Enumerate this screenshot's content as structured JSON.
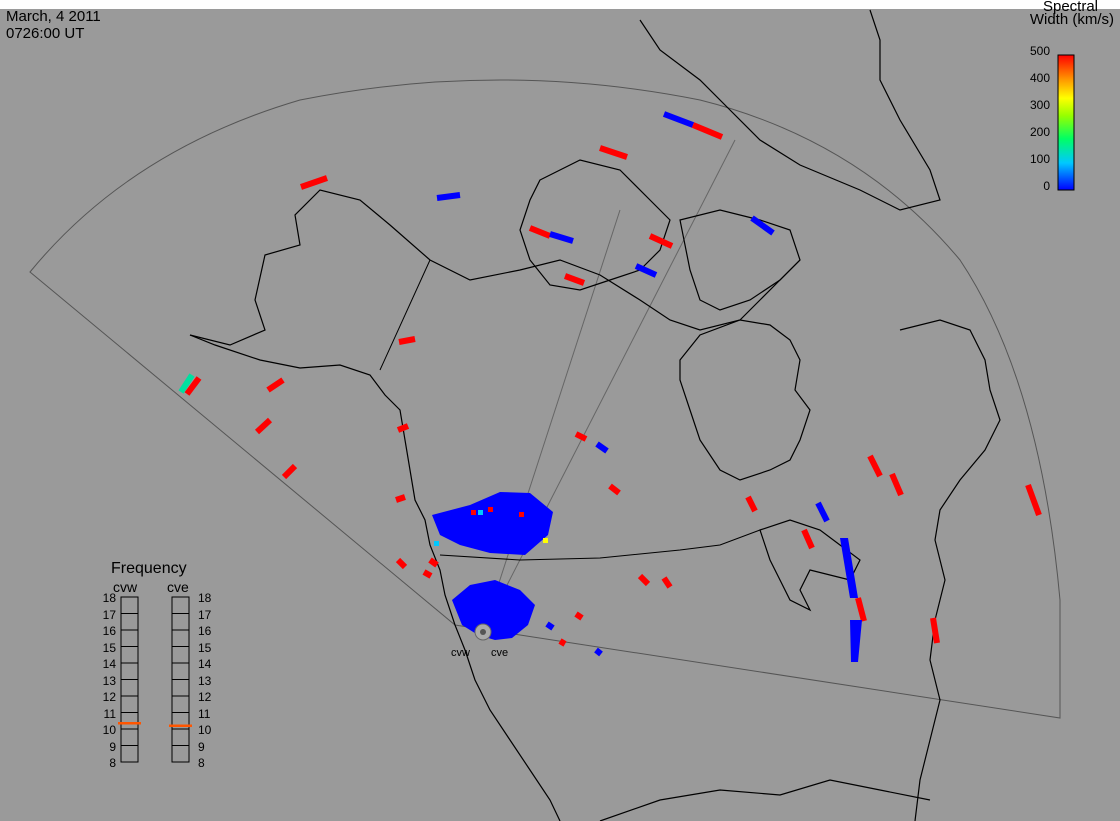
{
  "header": {
    "date": "March, 4 2011",
    "time": "0726:00 UT"
  },
  "colorbar": {
    "title_line1": "Spectral",
    "title_line2": "Width (km/s)",
    "ticks": [
      "500",
      "400",
      "300",
      "200",
      "100",
      "0"
    ],
    "min": 0,
    "max": 500,
    "colors": [
      "#0000ff",
      "#00c8ff",
      "#00ff64",
      "#96ff00",
      "#ffff00",
      "#ff9600",
      "#ff0000"
    ]
  },
  "frequency_panel": {
    "title": "Frequency",
    "columns": [
      {
        "name": "cvw",
        "value_mhz": 10.85,
        "marker_color": "#ff5500"
      },
      {
        "name": "cve",
        "value_mhz": 10.7,
        "marker_color": "#ff5500"
      }
    ],
    "scale": [
      "18",
      "17",
      "16",
      "15",
      "14",
      "13",
      "12",
      "11",
      "10",
      "9",
      "8"
    ]
  },
  "radars": [
    {
      "name": "cvw"
    },
    {
      "name": "cve"
    }
  ],
  "colors": {
    "background": "#9a9a9a",
    "coastline": "#000000",
    "fov_outline": "#555555",
    "high_width": "#ff0000",
    "low_width": "#0000ff"
  }
}
